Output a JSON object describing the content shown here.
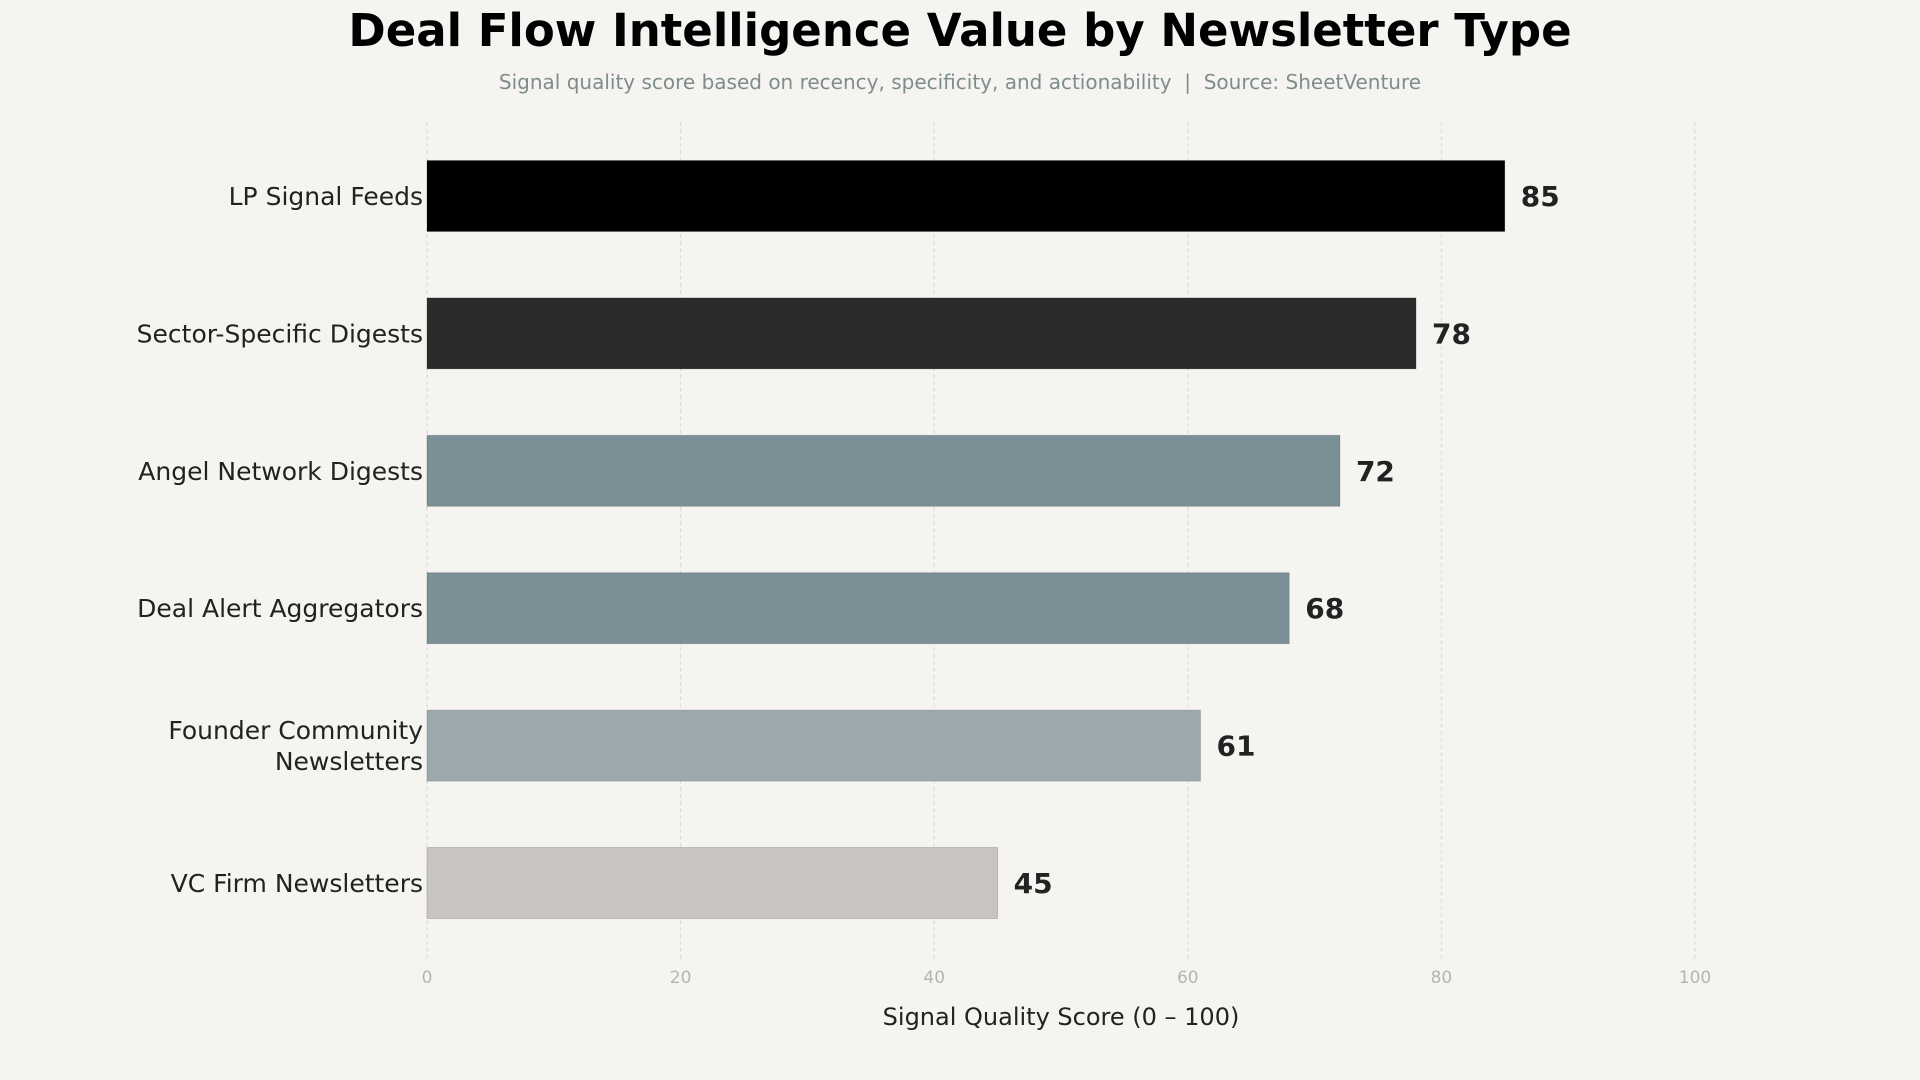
{
  "colors": {
    "background": "#f5f4f0",
    "grid": "#d9d9d6",
    "text": "#222222",
    "tick": "#b5b5b0"
  },
  "chart_data": {
    "type": "bar",
    "orientation": "horizontal",
    "title": "Deal Flow Intelligence Value by Newsletter Type",
    "subtitle": "Signal quality score based on recency, specificity, and actionability  |  Source: SheetVenture",
    "xlabel": "Signal Quality Score (0 – 100)",
    "ylabel": "",
    "xlim": [
      0,
      100
    ],
    "xticks": [
      0,
      20,
      40,
      60,
      80,
      100
    ],
    "grid": "vertical dashed",
    "categories": [
      "LP Signal Feeds",
      "Sector-Specific Digests",
      "Angel Network Digests",
      "Deal Alert Aggregators",
      "Founder Community\nNewsletters",
      "VC Firm Newsletters"
    ],
    "values": [
      85,
      78,
      72,
      68,
      61,
      45
    ],
    "bar_colors": [
      "#000000",
      "#2b2b2b",
      "#7b8f96",
      "#7b8f96",
      "#9caaae",
      "#c8c5c0"
    ]
  }
}
